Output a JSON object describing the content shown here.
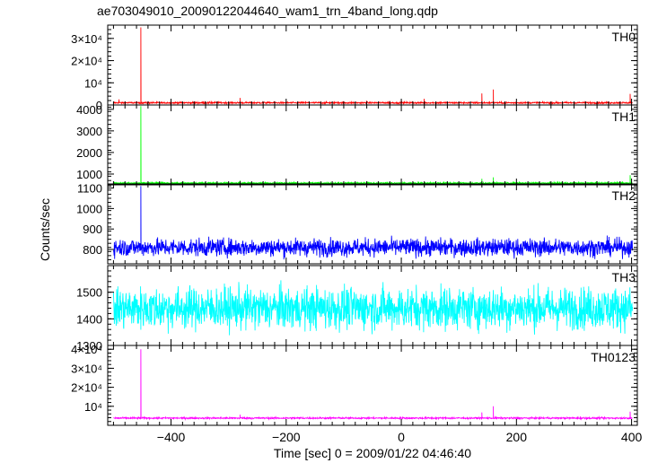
{
  "chart_data": {
    "type": "line",
    "title": "ae703049010_20090122044640_wam1_trn_4band_long.qdp",
    "xlabel": "Time [sec] 0 = 2009/01/22 04:46:40",
    "ylabel": "Counts/sec",
    "xlim": [
      -510,
      410
    ],
    "x_ticks": [
      -400,
      -200,
      0,
      200,
      400
    ],
    "x_tick_labels": [
      "−400",
      "−200",
      "0",
      "200",
      "400"
    ],
    "panels": [
      {
        "name": "TH0",
        "color": "#ff0000",
        "ylim": [
          0,
          36000
        ],
        "y_ticks": [
          0,
          10000,
          20000,
          30000
        ],
        "y_tick_labels": [
          "0",
          "10⁴",
          "2×10⁴",
          "3×10⁴"
        ],
        "baseline": 1000,
        "noise": 250,
        "spikes": [
          [
            -452,
            35000
          ],
          [
            -490,
            2500
          ],
          [
            -280,
            3200
          ],
          [
            -330,
            1800
          ],
          [
            -240,
            1500
          ],
          [
            -200,
            1400
          ],
          [
            -110,
            1600
          ],
          [
            -60,
            2000
          ],
          [
            -20,
            1800
          ],
          [
            20,
            1700
          ],
          [
            40,
            2800
          ],
          [
            55,
            1500
          ],
          [
            140,
            5200
          ],
          [
            160,
            7000
          ],
          [
            398,
            5000
          ]
        ]
      },
      {
        "name": "TH1",
        "color": "#00ff00",
        "ylim": [
          500,
          4200
        ],
        "y_ticks": [
          1000,
          2000,
          3000,
          4000
        ],
        "y_tick_labels": [
          "1000",
          "2000",
          "3000",
          "4000"
        ],
        "baseline": 580,
        "noise": 25,
        "spikes": [
          [
            -452,
            4150
          ],
          [
            -280,
            700
          ],
          [
            140,
            780
          ],
          [
            160,
            850
          ],
          [
            398,
            950
          ]
        ]
      },
      {
        "name": "TH2",
        "color": "#0000ff",
        "ylim": [
          730,
          1120
        ],
        "y_ticks": [
          800,
          900,
          1000,
          1100
        ],
        "y_tick_labels": [
          "800",
          "900",
          "1000",
          "1100"
        ],
        "baseline": 810,
        "noise": 30,
        "spikes": [
          [
            -452,
            1110
          ]
        ]
      },
      {
        "name": "TH3",
        "color": "#00ffff",
        "ylim": [
          1300,
          1600
        ],
        "y_ticks": [
          1300,
          1400,
          1500
        ],
        "y_tick_labels": [
          "1300",
          "1400",
          "1500"
        ],
        "baseline": 1440,
        "noise": 55,
        "spikes": []
      },
      {
        "name": "TH0123",
        "color": "#ff00ff",
        "ylim": [
          0,
          42000
        ],
        "y_ticks": [
          10000,
          20000,
          30000,
          40000
        ],
        "y_tick_labels": [
          "10⁴",
          "2×10⁴",
          "3×10⁴",
          "4×10⁴"
        ],
        "baseline": 3800,
        "noise": 300,
        "spikes": [
          [
            -452,
            40000
          ],
          [
            -280,
            5600
          ],
          [
            140,
            6800
          ],
          [
            160,
            10000
          ],
          [
            398,
            7200
          ]
        ]
      }
    ]
  }
}
